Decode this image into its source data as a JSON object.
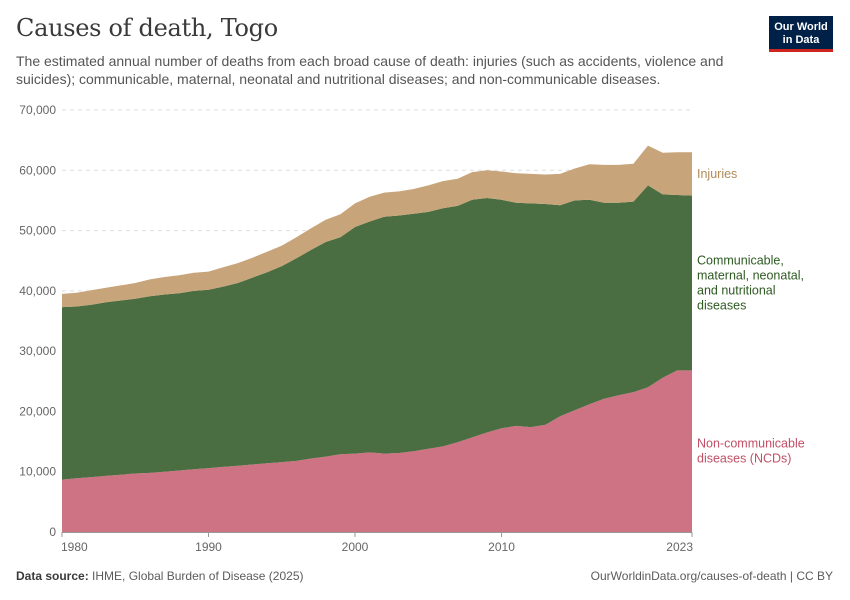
{
  "header": {
    "title": "Causes of death, Togo",
    "subtitle": "The estimated annual number of deaths from each broad cause of death: injuries (such as accidents, violence and suicides); communicable, maternal, neonatal and nutritional diseases; and non-communicable diseases."
  },
  "logo": {
    "line1": "Our World",
    "line2": "in Data",
    "bg": "#002147",
    "accent": "#ce261e"
  },
  "footer": {
    "source_label": "Data source:",
    "source_text": "IHME, Global Burden of Disease (2025)",
    "url_text": "OurWorldinData.org/causes-of-death | CC BY"
  },
  "chart_data": {
    "type": "area",
    "stacked": true,
    "x": [
      1980,
      1981,
      1982,
      1983,
      1984,
      1985,
      1986,
      1987,
      1988,
      1989,
      1990,
      1991,
      1992,
      1993,
      1994,
      1995,
      1996,
      1997,
      1998,
      1999,
      2000,
      2001,
      2002,
      2003,
      2004,
      2005,
      2006,
      2007,
      2008,
      2009,
      2010,
      2011,
      2012,
      2013,
      2014,
      2015,
      2016,
      2017,
      2018,
      2019,
      2020,
      2021,
      2022,
      2023
    ],
    "x_ticks": [
      "1980",
      "1990",
      "2000",
      "2010",
      "2023"
    ],
    "y_ticks": [
      "0",
      "10,000",
      "20,000",
      "30,000",
      "40,000",
      "50,000",
      "60,000",
      "70,000"
    ],
    "ylim": [
      0,
      70000
    ],
    "grid": true,
    "series": [
      {
        "name": "Non-communicable diseases (NCDs)",
        "label_lines": [
          "Non-communicable",
          "diseases (NCDs)"
        ],
        "color": "#ce7383",
        "label_color": "#c15065",
        "values": [
          8700,
          8900,
          9100,
          9300,
          9500,
          9700,
          9800,
          10000,
          10200,
          10400,
          10600,
          10800,
          11000,
          11200,
          11400,
          11600,
          11800,
          12200,
          12500,
          12900,
          13000,
          13200,
          13000,
          13100,
          13400,
          13800,
          14200,
          14900,
          15700,
          16500,
          17200,
          17600,
          17400,
          17800,
          19200,
          20200,
          21200,
          22100,
          22700,
          23200,
          24000,
          25600,
          26800,
          26800
        ],
        "cumulative": [
          8700,
          8900,
          9100,
          9300,
          9500,
          9700,
          9800,
          10000,
          10200,
          10400,
          10600,
          10800,
          11000,
          11200,
          11400,
          11600,
          11800,
          12200,
          12500,
          12900,
          13000,
          13200,
          13000,
          13100,
          13400,
          13800,
          14200,
          14900,
          15700,
          16500,
          17200,
          17600,
          17400,
          17800,
          19200,
          20200,
          21200,
          22100,
          22700,
          23200,
          24000,
          25600,
          26800,
          26800
        ]
      },
      {
        "name": "Communicable, maternal, neonatal, and nutritional diseases",
        "label_lines": [
          "Communicable,",
          "maternal, neonatal,",
          "and nutritional",
          "diseases"
        ],
        "color": "#4a6e41",
        "label_color": "#2e5a22",
        "values": [
          28600,
          28500,
          28600,
          28800,
          28900,
          29000,
          29300,
          29400,
          29400,
          29600,
          29600,
          29900,
          30300,
          31000,
          31700,
          32500,
          33600,
          34600,
          35600,
          36000,
          37600,
          38300,
          39300,
          39400,
          39400,
          39300,
          39500,
          39200,
          39400,
          38900,
          37900,
          37000,
          37100,
          36600,
          35000,
          34800,
          33900,
          32500,
          31900,
          31600,
          33500,
          30400,
          29100,
          29000
        ],
        "cumulative": [
          37300,
          37400,
          37700,
          38100,
          38400,
          38700,
          39100,
          39400,
          39600,
          40000,
          40200,
          40700,
          41300,
          42200,
          43100,
          44100,
          45400,
          46800,
          48100,
          48900,
          50600,
          51500,
          52300,
          52500,
          52800,
          53100,
          53700,
          54100,
          55100,
          55400,
          55100,
          54600,
          54500,
          54400,
          54200,
          55000,
          55100,
          54600,
          54600,
          54800,
          57500,
          56000,
          55900,
          55800
        ]
      },
      {
        "name": "Injuries",
        "label_lines": [
          "Injuries"
        ],
        "color": "#c7a479",
        "label_color": "#b38a58",
        "values": [
          2200,
          2300,
          2400,
          2400,
          2500,
          2600,
          2800,
          2900,
          3000,
          3000,
          3000,
          3200,
          3300,
          3300,
          3400,
          3400,
          3500,
          3600,
          3700,
          3800,
          3900,
          4100,
          4000,
          4000,
          4100,
          4400,
          4500,
          4500,
          4600,
          4600,
          4700,
          4900,
          4900,
          4900,
          5200,
          5300,
          5900,
          6300,
          6300,
          6300,
          6600,
          6900,
          7100,
          7200
        ],
        "cumulative": [
          39500,
          39700,
          40100,
          40500,
          40900,
          41300,
          41900,
          42300,
          42600,
          43000,
          43200,
          43900,
          44600,
          45500,
          46500,
          47500,
          48900,
          50400,
          51800,
          52700,
          54500,
          55600,
          56300,
          56500,
          56900,
          57500,
          58200,
          58600,
          59700,
          60000,
          59800,
          59500,
          59400,
          59300,
          59400,
          60300,
          61000,
          60900,
          60900,
          61100,
          64100,
          62900,
          63000,
          63000
        ]
      }
    ]
  }
}
